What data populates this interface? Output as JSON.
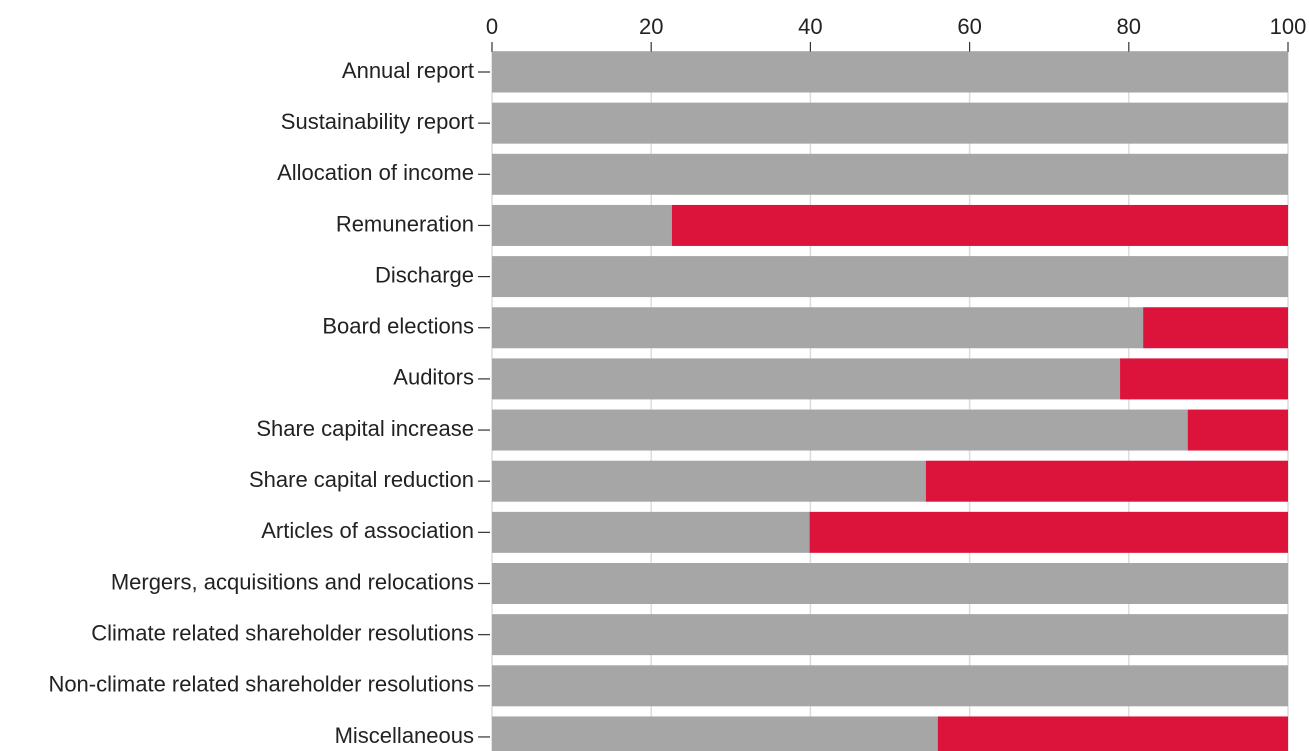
{
  "chart_data": {
    "type": "stacked_barh",
    "categories": [
      "Annual report",
      "Sustainability report",
      "Allocation of income",
      "Remuneration",
      "Discharge",
      "Board elections",
      "Auditors",
      "Share capital increase",
      "Share capital reduction",
      "Articles of association",
      "Mergers, acquisitions and relocations",
      "Climate related shareholder resolutions",
      "Non-climate related shareholder resolutions",
      "Miscellaneous"
    ],
    "series": [
      {
        "color": "#a6a6a6",
        "values": [
          100,
          100,
          100,
          22.6,
          100,
          81.8,
          78.9,
          87.4,
          54.5,
          39.9,
          100,
          100,
          100,
          56.0
        ]
      },
      {
        "color": "#dc143c",
        "values": [
          0,
          0,
          0,
          77.4,
          0,
          18.2,
          21.1,
          12.6,
          45.5,
          60.1,
          0,
          0,
          0,
          44.0
        ]
      }
    ],
    "xlim": [
      0,
      100
    ],
    "xticks": [
      0,
      20,
      40,
      60,
      80,
      100
    ],
    "grid": true
  }
}
